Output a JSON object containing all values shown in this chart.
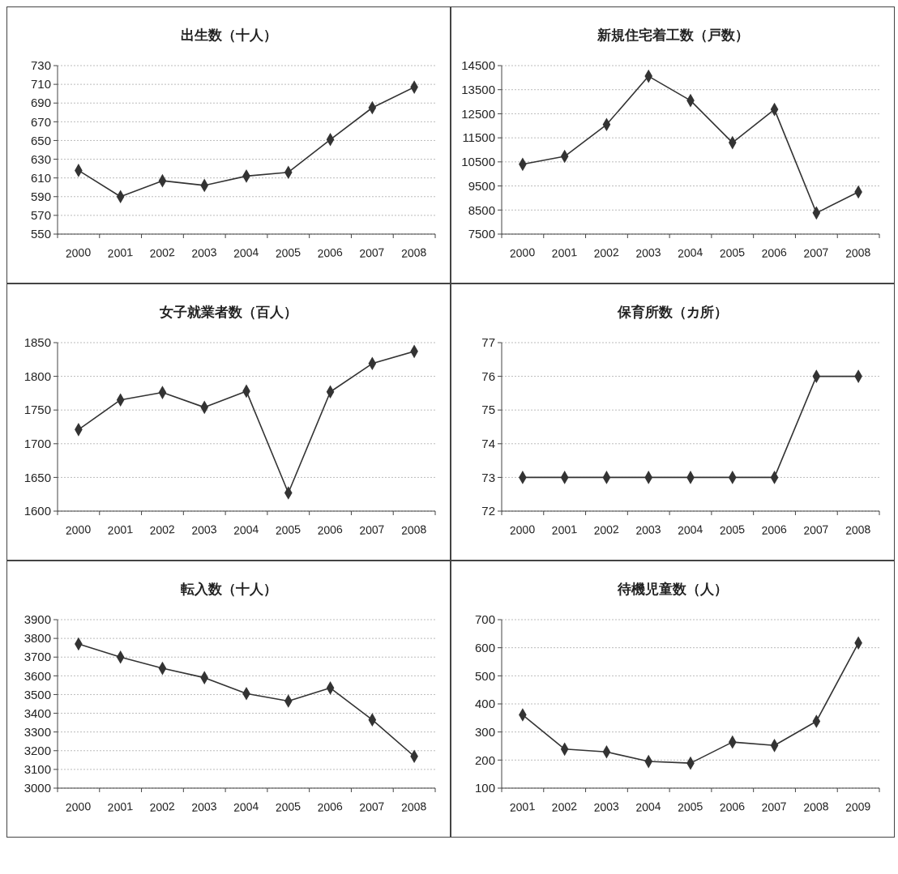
{
  "chart_data": [
    {
      "type": "line",
      "title": "出生数（十人）",
      "categories": [
        "2000",
        "2001",
        "2002",
        "2003",
        "2004",
        "2005",
        "2006",
        "2007",
        "2008"
      ],
      "series": [
        {
          "color": "#333333",
          "values": [
            618,
            590,
            607,
            602,
            612,
            616,
            651,
            685,
            707
          ]
        }
      ],
      "ylim": [
        550,
        730
      ],
      "yticks": [
        550,
        570,
        590,
        610,
        630,
        650,
        670,
        690,
        710,
        730
      ],
      "grid": "y",
      "marker": "diamond"
    },
    {
      "type": "line",
      "title": "新規住宅着工数（戸数）",
      "categories": [
        "2000",
        "2001",
        "2002",
        "2003",
        "2004",
        "2005",
        "2006",
        "2007",
        "2008"
      ],
      "series": [
        {
          "color": "#333333",
          "values": [
            10400,
            10730,
            12050,
            14060,
            13050,
            11300,
            12680,
            8380,
            9250
          ]
        }
      ],
      "ylim": [
        7500,
        14500
      ],
      "yticks": [
        7500,
        8500,
        9500,
        10500,
        11500,
        12500,
        13500,
        14500
      ],
      "grid": "y",
      "marker": "diamond"
    },
    {
      "type": "line",
      "title": "女子就業者数（百人）",
      "categories": [
        "2000",
        "2001",
        "2002",
        "2003",
        "2004",
        "2005",
        "2006",
        "2007",
        "2008"
      ],
      "series": [
        {
          "color": "#333333",
          "values": [
            1721,
            1765,
            1776,
            1754,
            1778,
            1627,
            1777,
            1819,
            1837
          ]
        }
      ],
      "ylim": [
        1600,
        1850
      ],
      "yticks": [
        1600,
        1650,
        1700,
        1750,
        1800,
        1850
      ],
      "grid": "y",
      "marker": "diamond"
    },
    {
      "type": "line",
      "title": "保育所数（カ所）",
      "categories": [
        "2000",
        "2001",
        "2002",
        "2003",
        "2004",
        "2005",
        "2006",
        "2007",
        "2008"
      ],
      "series": [
        {
          "color": "#333333",
          "values": [
            73,
            73,
            73,
            73,
            73,
            73,
            73,
            76,
            76
          ]
        }
      ],
      "ylim": [
        72,
        77
      ],
      "yticks": [
        72,
        73,
        74,
        75,
        76,
        77
      ],
      "grid": "y",
      "marker": "diamond"
    },
    {
      "type": "line",
      "title": "転入数（十人）",
      "categories": [
        "2000",
        "2001",
        "2002",
        "2003",
        "2004",
        "2005",
        "2006",
        "2007",
        "2008"
      ],
      "series": [
        {
          "color": "#333333",
          "values": [
            3770,
            3700,
            3640,
            3590,
            3505,
            3465,
            3535,
            3365,
            3170
          ]
        }
      ],
      "ylim": [
        3000,
        3900
      ],
      "yticks": [
        3000,
        3100,
        3200,
        3300,
        3400,
        3500,
        3600,
        3700,
        3800,
        3900
      ],
      "grid": "y",
      "marker": "diamond"
    },
    {
      "type": "line",
      "title": "待機児童数（人）",
      "categories": [
        "2001",
        "2002",
        "2003",
        "2004",
        "2005",
        "2006",
        "2007",
        "2008",
        "2009"
      ],
      "series": [
        {
          "color": "#333333",
          "values": [
            361,
            239,
            229,
            195,
            189,
            264,
            252,
            338,
            617
          ]
        }
      ],
      "ylim": [
        100,
        700
      ],
      "yticks": [
        100,
        200,
        300,
        400,
        500,
        600,
        700
      ],
      "grid": "y",
      "marker": "diamond"
    }
  ]
}
